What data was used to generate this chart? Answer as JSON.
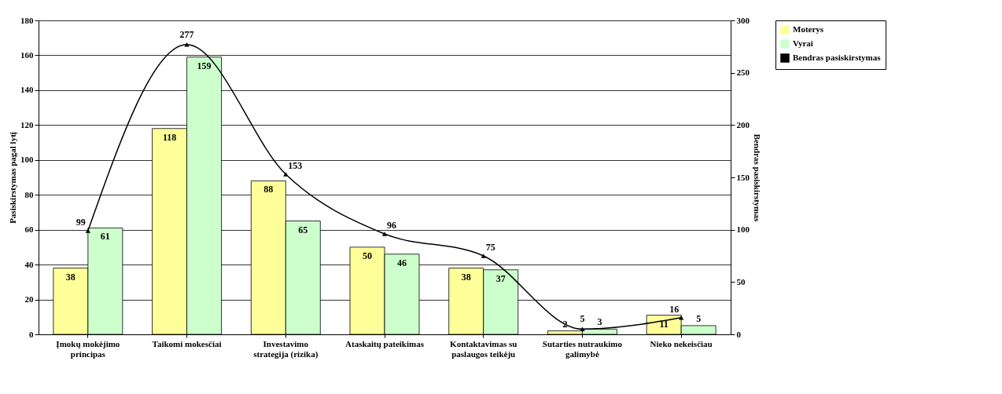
{
  "chart_data": {
    "type": "bar",
    "ylabel": "Pasiskirstymas pagal lytį",
    "y2label": "Bendras pasiskirstymas",
    "categories": [
      "Įmokų mokėjimo principas",
      "Taikomi mokesčiai",
      "Investavimo strategija (rizika)",
      "Ataskaitų pateikimas",
      "Kontaktavimas su paslaugos teikėju",
      "Sutarties nutraukimo galimybė",
      "Nieko nekeisčiau"
    ],
    "series": [
      {
        "name": "Moterys",
        "color": "#ffff99",
        "values": [
          38,
          118,
          88,
          50,
          38,
          2,
          11
        ]
      },
      {
        "name": "Vyrai",
        "color": "#ccffcc",
        "values": [
          61,
          159,
          65,
          46,
          37,
          3,
          5
        ]
      },
      {
        "name": "Bendras pasiskirstymas",
        "type": "line",
        "axis": "y2",
        "color": "#000000",
        "marker": "triangle",
        "values": [
          99,
          277,
          153,
          96,
          75,
          5,
          16
        ]
      }
    ],
    "ylim": [
      0,
      180
    ],
    "yticks": [
      0,
      20,
      40,
      60,
      80,
      100,
      120,
      140,
      160,
      180
    ],
    "y2lim": [
      0,
      300
    ],
    "y2ticks": [
      0,
      50,
      100,
      150,
      200,
      250,
      300
    ],
    "grid": "y",
    "legend": "right",
    "data_labels": true
  }
}
